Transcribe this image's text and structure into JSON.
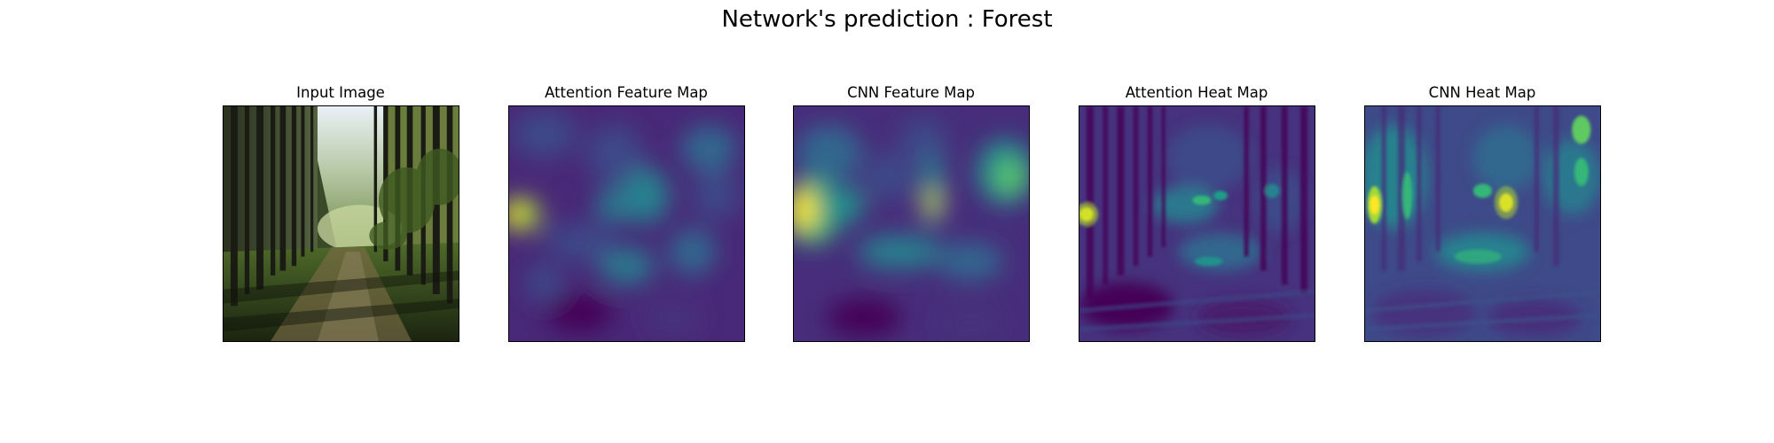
{
  "figure": {
    "title": "Network's prediction : Forest"
  },
  "panels": [
    {
      "title": "Input Image"
    },
    {
      "title": "Attention Feature Map"
    },
    {
      "title": "CNN Feature Map"
    },
    {
      "title": "Attention Heat Map"
    },
    {
      "title": "CNN Heat Map"
    }
  ],
  "colors": {
    "viridis_dark": "#440154",
    "viridis_purple": "#482878",
    "viridis_blue": "#3e4a89",
    "viridis_teal": "#26828e",
    "viridis_green": "#35b779",
    "viridis_yellow": "#fde725",
    "forest_sky": "#e8f0f4",
    "forest_dark": "#1a1f14"
  }
}
